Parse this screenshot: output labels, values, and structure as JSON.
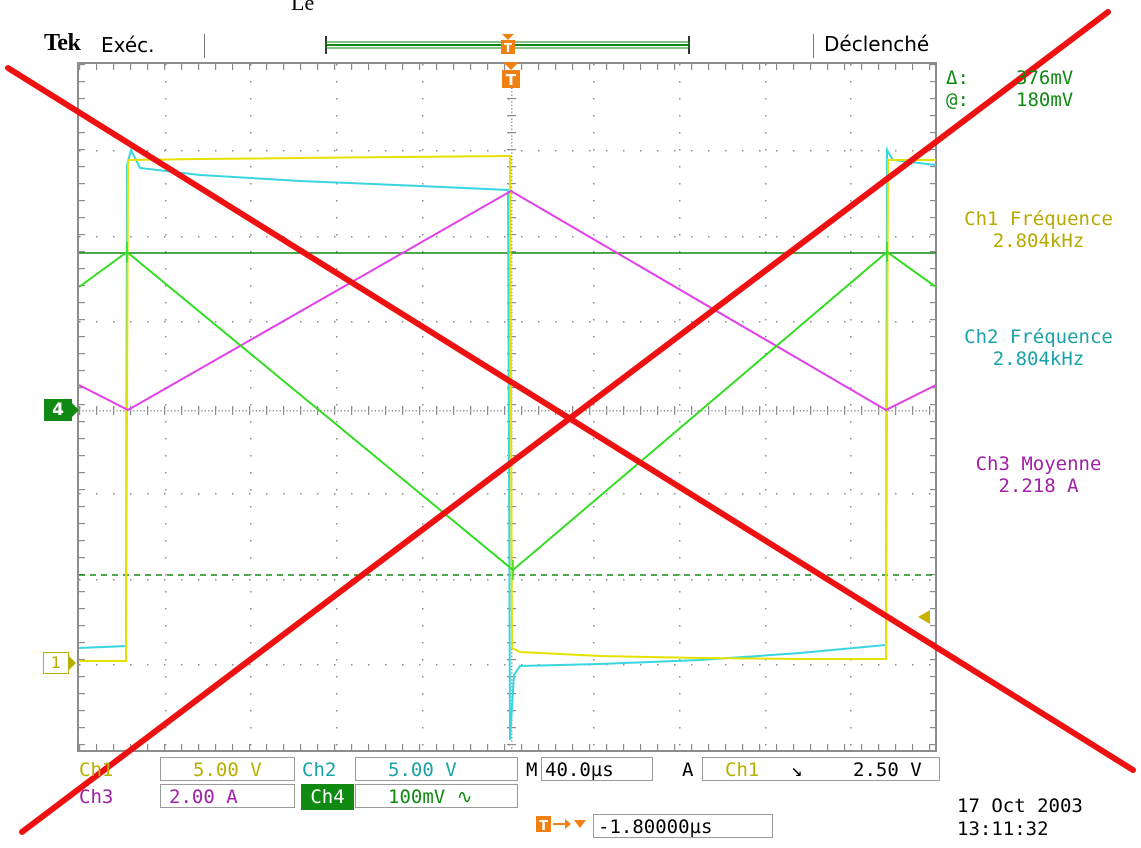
{
  "overlay": {
    "caption_fragment": "Le"
  },
  "header": {
    "brand": "Tek",
    "run_state": "Exéc.",
    "trigger_state": "Déclenché"
  },
  "cursor": {
    "delta_label": "Δ:",
    "delta_value": "376mV",
    "at_label": "@:",
    "at_value": "180mV"
  },
  "measurements": [
    {
      "name": "Ch1 Fréquence",
      "value": "2.804kHz",
      "color": "#b5aa00"
    },
    {
      "name": "Ch2 Fréquence",
      "value": "2.804kHz",
      "color": "#19a3a8"
    },
    {
      "name": "Ch3 Moyenne",
      "value": "2.218 A",
      "color": "#a020a8"
    }
  ],
  "markers": {
    "ch4": "4",
    "ch1": "1"
  },
  "channels": {
    "ch1": {
      "label": "Ch1",
      "scale": "5.00 V",
      "color": "#c8c000"
    },
    "ch2": {
      "label": "Ch2",
      "scale": "5.00 V",
      "color": "#19b7bf"
    },
    "ch3": {
      "label": "Ch3",
      "scale": "2.00 A",
      "color": "#b020b8"
    },
    "ch4": {
      "label": "Ch4",
      "scale": "100mV ∿",
      "color": "#118a14"
    }
  },
  "timebase": {
    "label": "M",
    "value": "40.0µs"
  },
  "trigger": {
    "mode": "A",
    "source": "Ch1",
    "slope": "↘",
    "level": "2.50 V",
    "position": "-1.80000µs"
  },
  "timestamp": {
    "date": "17 Oct  2003",
    "time": "13:11:32"
  },
  "trace_colors": {
    "yellow": "#e6e000",
    "cyan": "#3ad6e0",
    "magenta": "#e040e8",
    "green": "#33dd22",
    "red_cross": "#ee1111"
  }
}
